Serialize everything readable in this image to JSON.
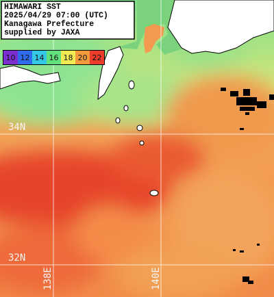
{
  "header": {
    "lines": [
      "HIMAWARI SST",
      "2025/04/29 07:00 (UTC)",
      "Kanagawa Prefecture",
      "supplied by JAXA"
    ]
  },
  "colorbar": {
    "labels": [
      10,
      12,
      14,
      16,
      18,
      20,
      22
    ]
  },
  "grid": {
    "lat_labels": [
      "34N",
      "32N"
    ],
    "lon_labels": [
      "138E",
      "140E"
    ]
  }
}
